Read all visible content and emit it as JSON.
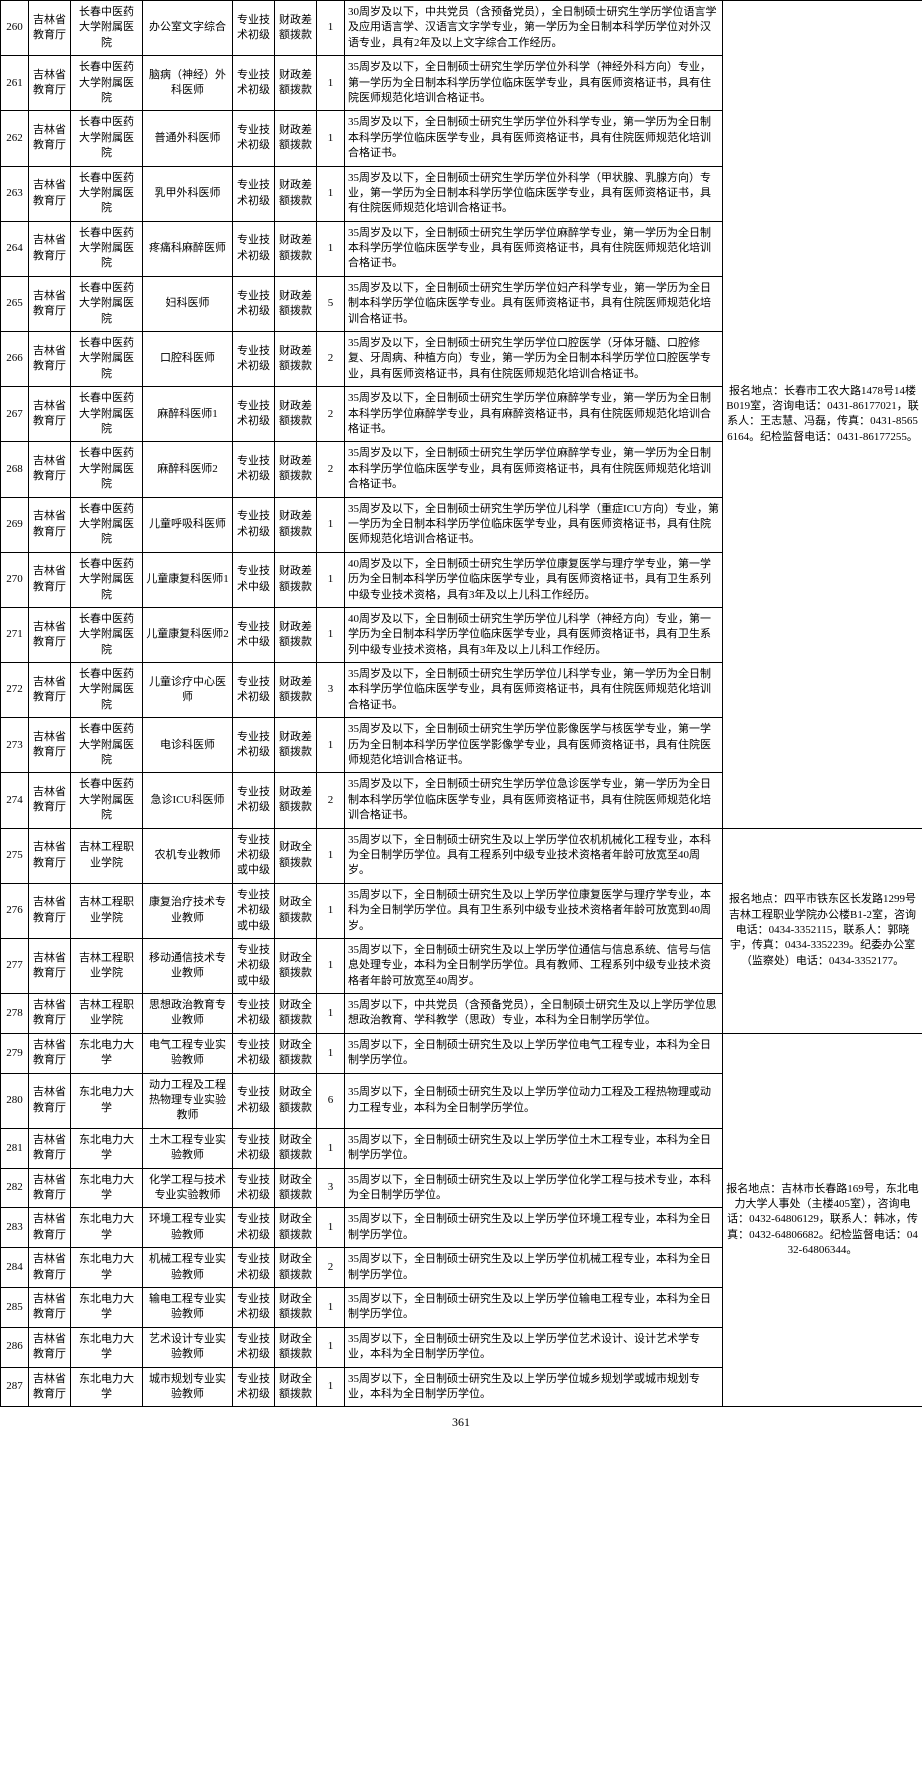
{
  "page_number": "361",
  "contact_group1": "报名地点：长春市工农大路1478号14楼B019室，咨询电话：0431-86177021，联系人：王志慧、冯磊，传真：0431-85656164。纪检监督电话：0431-86177255。",
  "contact_group2": "报名地点：四平市铁东区长发路1299号吉林工程职业学院办公楼B1-2室，咨询电话：0434-3352115，联系人：郭晓宇，传真：0434-3352239。纪委办公室（监察处）电话：0434-3352177。",
  "contact_group3": "报名地点：吉林市长春路169号，东北电力大学人事处（主楼405室），咨询电话：0432-64806129，联系人：韩冰，传真：0432-64806682。纪检监督电话：0432-64806344。",
  "rows": [
    {
      "n": "260",
      "d": "吉林省教育厅",
      "u": "长春中医药大学附属医院",
      "p": "办公室文字综合",
      "c": "专业技术初级",
      "f": "财政差额拨款",
      "q": "1",
      "r": "30周岁及以下，中共党员（含预备党员），全日制硕士研究生学历学位语言学及应用语言学、汉语言文字学专业，第一学历为全日制本科学历学位对外汉语专业，具有2年及以上文字综合工作经历。"
    },
    {
      "n": "261",
      "d": "吉林省教育厅",
      "u": "长春中医药大学附属医院",
      "p": "脑病（神经）外科医师",
      "c": "专业技术初级",
      "f": "财政差额拨款",
      "q": "1",
      "r": "35周岁及以下，全日制硕士研究生学历学位外科学（神经外科方向）专业，第一学历为全日制本科学历学位临床医学专业，具有医师资格证书，具有住院医师规范化培训合格证书。"
    },
    {
      "n": "262",
      "d": "吉林省教育厅",
      "u": "长春中医药大学附属医院",
      "p": "普通外科医师",
      "c": "专业技术初级",
      "f": "财政差额拨款",
      "q": "1",
      "r": "35周岁及以下，全日制硕士研究生学历学位外科学专业，第一学历为全日制本科学历学位临床医学专业，具有医师资格证书，具有住院医师规范化培训合格证书。"
    },
    {
      "n": "263",
      "d": "吉林省教育厅",
      "u": "长春中医药大学附属医院",
      "p": "乳甲外科医师",
      "c": "专业技术初级",
      "f": "财政差额拨款",
      "q": "1",
      "r": "35周岁及以下，全日制硕士研究生学历学位外科学（甲状腺、乳腺方向）专业，第一学历为全日制本科学历学位临床医学专业，具有医师资格证书，具有住院医师规范化培训合格证书。"
    },
    {
      "n": "264",
      "d": "吉林省教育厅",
      "u": "长春中医药大学附属医院",
      "p": "疼痛科麻醉医师",
      "c": "专业技术初级",
      "f": "财政差额拨款",
      "q": "1",
      "r": "35周岁及以下，全日制硕士研究生学历学位麻醉学专业，第一学历为全日制本科学历学位临床医学专业，具有医师资格证书，具有住院医师规范化培训合格证书。"
    },
    {
      "n": "265",
      "d": "吉林省教育厅",
      "u": "长春中医药大学附属医院",
      "p": "妇科医师",
      "c": "专业技术初级",
      "f": "财政差额拨款",
      "q": "5",
      "r": "35周岁及以下，全日制硕士研究生学历学位妇产科学专业，第一学历为全日制本科学历学位临床医学专业。具有医师资格证书，具有住院医师规范化培训合格证书。"
    },
    {
      "n": "266",
      "d": "吉林省教育厅",
      "u": "长春中医药大学附属医院",
      "p": "口腔科医师",
      "c": "专业技术初级",
      "f": "财政差额拨款",
      "q": "2",
      "r": "35周岁及以下，全日制硕士研究生学历学位口腔医学（牙体牙髓、口腔修复、牙周病、种植方向）专业，第一学历为全日制本科学历学位口腔医学专业，具有医师资格证书，具有住院医师规范化培训合格证书。"
    },
    {
      "n": "267",
      "d": "吉林省教育厅",
      "u": "长春中医药大学附属医院",
      "p": "麻醉科医师1",
      "c": "专业技术初级",
      "f": "财政差额拨款",
      "q": "2",
      "r": "35周岁及以下，全日制硕士研究生学历学位麻醉学专业，第一学历为全日制本科学历学位麻醉学专业，具有麻醉资格证书，具有住院医师规范化培训合格证书。"
    },
    {
      "n": "268",
      "d": "吉林省教育厅",
      "u": "长春中医药大学附属医院",
      "p": "麻醉科医师2",
      "c": "专业技术初级",
      "f": "财政差额拨款",
      "q": "2",
      "r": "35周岁及以下，全日制硕士研究生学历学位麻醉学专业，第一学历为全日制本科学历学位临床医学专业，具有医师资格证书，具有住院医师规范化培训合格证书。"
    },
    {
      "n": "269",
      "d": "吉林省教育厅",
      "u": "长春中医药大学附属医院",
      "p": "儿童呼吸科医师",
      "c": "专业技术初级",
      "f": "财政差额拨款",
      "q": "1",
      "r": "35周岁及以下，全日制硕士研究生学历学位儿科学（重症ICU方向）专业，第一学历为全日制本科学历学位临床医学专业，具有医师资格证书，具有住院医师规范化培训合格证书。"
    },
    {
      "n": "270",
      "d": "吉林省教育厅",
      "u": "长春中医药大学附属医院",
      "p": "儿童康复科医师1",
      "c": "专业技术中级",
      "f": "财政差额拨款",
      "q": "1",
      "r": "40周岁及以下，全日制硕士研究生学历学位康复医学与理疗学专业，第一学历为全日制本科学历学位临床医学专业，具有医师资格证书，具有卫生系列中级专业技术资格，具有3年及以上儿科工作经历。"
    },
    {
      "n": "271",
      "d": "吉林省教育厅",
      "u": "长春中医药大学附属医院",
      "p": "儿童康复科医师2",
      "c": "专业技术中级",
      "f": "财政差额拨款",
      "q": "1",
      "r": "40周岁及以下，全日制硕士研究生学历学位儿科学（神经方向）专业，第一学历为全日制本科学历学位临床医学专业，具有医师资格证书，具有卫生系列中级专业技术资格，具有3年及以上儿科工作经历。"
    },
    {
      "n": "272",
      "d": "吉林省教育厅",
      "u": "长春中医药大学附属医院",
      "p": "儿童诊疗中心医师",
      "c": "专业技术初级",
      "f": "财政差额拨款",
      "q": "3",
      "r": "35周岁及以下，全日制硕士研究生学历学位儿科学专业，第一学历为全日制本科学历学位临床医学专业，具有医师资格证书，具有住院医师规范化培训合格证书。"
    },
    {
      "n": "273",
      "d": "吉林省教育厅",
      "u": "长春中医药大学附属医院",
      "p": "电诊科医师",
      "c": "专业技术初级",
      "f": "财政差额拨款",
      "q": "1",
      "r": "35周岁及以下，全日制硕士研究生学历学位影像医学与核医学专业，第一学历为全日制本科学历学位医学影像学专业，具有医师资格证书，具有住院医师规范化培训合格证书。"
    },
    {
      "n": "274",
      "d": "吉林省教育厅",
      "u": "长春中医药大学附属医院",
      "p": "急诊ICU科医师",
      "c": "专业技术初级",
      "f": "财政差额拨款",
      "q": "2",
      "r": "35周岁及以下，全日制硕士研究生学历学位急诊医学专业，第一学历为全日制本科学历学位临床医学专业，具有医师资格证书，具有住院医师规范化培训合格证书。"
    },
    {
      "n": "275",
      "d": "吉林省教育厅",
      "u": "吉林工程职业学院",
      "p": "农机专业教师",
      "c": "专业技术初级或中级",
      "f": "财政全额拨款",
      "q": "1",
      "r": "35周岁以下，全日制硕士研究生及以上学历学位农机机械化工程专业，本科为全日制学历学位。具有工程系列中级专业技术资格者年龄可放宽至40周岁。"
    },
    {
      "n": "276",
      "d": "吉林省教育厅",
      "u": "吉林工程职业学院",
      "p": "康复治疗技术专业教师",
      "c": "专业技术初级或中级",
      "f": "财政全额拨款",
      "q": "1",
      "r": "35周岁以下，全日制硕士研究生及以上学历学位康复医学与理疗学专业，本科为全日制学历学位。具有卫生系列中级专业技术资格者年龄可放宽到40周岁。"
    },
    {
      "n": "277",
      "d": "吉林省教育厅",
      "u": "吉林工程职业学院",
      "p": "移动通信技术专业教师",
      "c": "专业技术初级或中级",
      "f": "财政全额拨款",
      "q": "1",
      "r": "35周岁以下，全日制硕士研究生及以上学历学位通信与信息系统、信号与信息处理专业，本科为全日制学历学位。具有教师、工程系列中级专业技术资格者年龄可放宽至40周岁。"
    },
    {
      "n": "278",
      "d": "吉林省教育厅",
      "u": "吉林工程职业学院",
      "p": "思想政治教育专业教师",
      "c": "专业技术初级",
      "f": "财政全额拨款",
      "q": "1",
      "r": "35周岁以下，中共党员（含预备党员），全日制硕士研究生及以上学历学位思想政治教育、学科教学（思政）专业，本科为全日制学历学位。"
    },
    {
      "n": "279",
      "d": "吉林省教育厅",
      "u": "东北电力大学",
      "p": "电气工程专业实验教师",
      "c": "专业技术初级",
      "f": "财政全额拨款",
      "q": "1",
      "r": "35周岁以下，全日制硕士研究生及以上学历学位电气工程专业，本科为全日制学历学位。"
    },
    {
      "n": "280",
      "d": "吉林省教育厅",
      "u": "东北电力大学",
      "p": "动力工程及工程热物理专业实验教师",
      "c": "专业技术初级",
      "f": "财政全额拨款",
      "q": "6",
      "r": "35周岁以下，全日制硕士研究生及以上学历学位动力工程及工程热物理或动力工程专业，本科为全日制学历学位。"
    },
    {
      "n": "281",
      "d": "吉林省教育厅",
      "u": "东北电力大学",
      "p": "土木工程专业实验教师",
      "c": "专业技术初级",
      "f": "财政全额拨款",
      "q": "1",
      "r": "35周岁以下，全日制硕士研究生及以上学历学位土木工程专业，本科为全日制学历学位。"
    },
    {
      "n": "282",
      "d": "吉林省教育厅",
      "u": "东北电力大学",
      "p": "化学工程与技术专业实验教师",
      "c": "专业技术初级",
      "f": "财政全额拨款",
      "q": "3",
      "r": "35周岁以下，全日制硕士研究生及以上学历学位化学工程与技术专业，本科为全日制学历学位。"
    },
    {
      "n": "283",
      "d": "吉林省教育厅",
      "u": "东北电力大学",
      "p": "环境工程专业实验教师",
      "c": "专业技术初级",
      "f": "财政全额拨款",
      "q": "1",
      "r": "35周岁以下，全日制硕士研究生及以上学历学位环境工程专业，本科为全日制学历学位。"
    },
    {
      "n": "284",
      "d": "吉林省教育厅",
      "u": "东北电力大学",
      "p": "机械工程专业实验教师",
      "c": "专业技术初级",
      "f": "财政全额拨款",
      "q": "2",
      "r": "35周岁以下，全日制硕士研究生及以上学历学位机械工程专业，本科为全日制学历学位。"
    },
    {
      "n": "285",
      "d": "吉林省教育厅",
      "u": "东北电力大学",
      "p": "输电工程专业实验教师",
      "c": "专业技术初级",
      "f": "财政全额拨款",
      "q": "1",
      "r": "35周岁以下，全日制硕士研究生及以上学历学位输电工程专业，本科为全日制学历学位。"
    },
    {
      "n": "286",
      "d": "吉林省教育厅",
      "u": "东北电力大学",
      "p": "艺术设计专业实验教师",
      "c": "专业技术初级",
      "f": "财政全额拨款",
      "q": "1",
      "r": "35周岁以下，全日制硕士研究生及以上学历学位艺术设计、设计艺术学专业，本科为全日制学历学位。"
    },
    {
      "n": "287",
      "d": "吉林省教育厅",
      "u": "东北电力大学",
      "p": "城市规划专业实验教师",
      "c": "专业技术初级",
      "f": "财政全额拨款",
      "q": "1",
      "r": "35周岁以下，全日制硕士研究生及以上学历学位城乡规划学或城市规划专业，本科为全日制学历学位。"
    }
  ]
}
